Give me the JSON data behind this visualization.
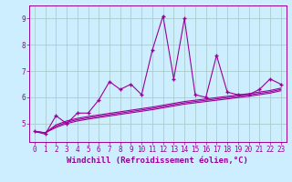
{
  "xlabel": "Windchill (Refroidissement éolien,°C)",
  "background_color": "#cceeff",
  "grid_color": "#aacccc",
  "line_color": "#990099",
  "x_values": [
    0,
    1,
    2,
    3,
    4,
    5,
    6,
    7,
    8,
    9,
    10,
    11,
    12,
    13,
    14,
    15,
    16,
    17,
    18,
    19,
    20,
    21,
    22,
    23
  ],
  "y_spiky": [
    4.7,
    4.6,
    5.3,
    5.0,
    5.4,
    5.4,
    5.9,
    6.6,
    6.3,
    6.5,
    6.1,
    7.8,
    9.1,
    6.7,
    9.0,
    6.1,
    6.0,
    7.6,
    6.2,
    6.1,
    6.1,
    6.3,
    6.7,
    6.5
  ],
  "y_smooth1": [
    4.7,
    4.65,
    4.95,
    5.1,
    5.2,
    5.27,
    5.33,
    5.39,
    5.45,
    5.51,
    5.57,
    5.63,
    5.7,
    5.77,
    5.84,
    5.89,
    5.94,
    5.99,
    6.04,
    6.09,
    6.14,
    6.2,
    6.26,
    6.35
  ],
  "y_smooth2": [
    4.7,
    4.65,
    4.9,
    5.05,
    5.15,
    5.22,
    5.28,
    5.34,
    5.4,
    5.46,
    5.52,
    5.58,
    5.65,
    5.72,
    5.79,
    5.84,
    5.89,
    5.94,
    5.99,
    6.04,
    6.09,
    6.15,
    6.21,
    6.3
  ],
  "y_smooth3": [
    4.7,
    4.65,
    4.85,
    5.0,
    5.1,
    5.17,
    5.23,
    5.29,
    5.35,
    5.41,
    5.47,
    5.53,
    5.6,
    5.67,
    5.74,
    5.79,
    5.84,
    5.89,
    5.94,
    5.99,
    6.04,
    6.1,
    6.16,
    6.25
  ],
  "ylim": [
    4.3,
    9.5
  ],
  "yticks": [
    5,
    6,
    7,
    8,
    9
  ],
  "xlim": [
    -0.5,
    23.5
  ],
  "xlabel_fontsize": 6.5,
  "tick_fontsize": 5.5
}
